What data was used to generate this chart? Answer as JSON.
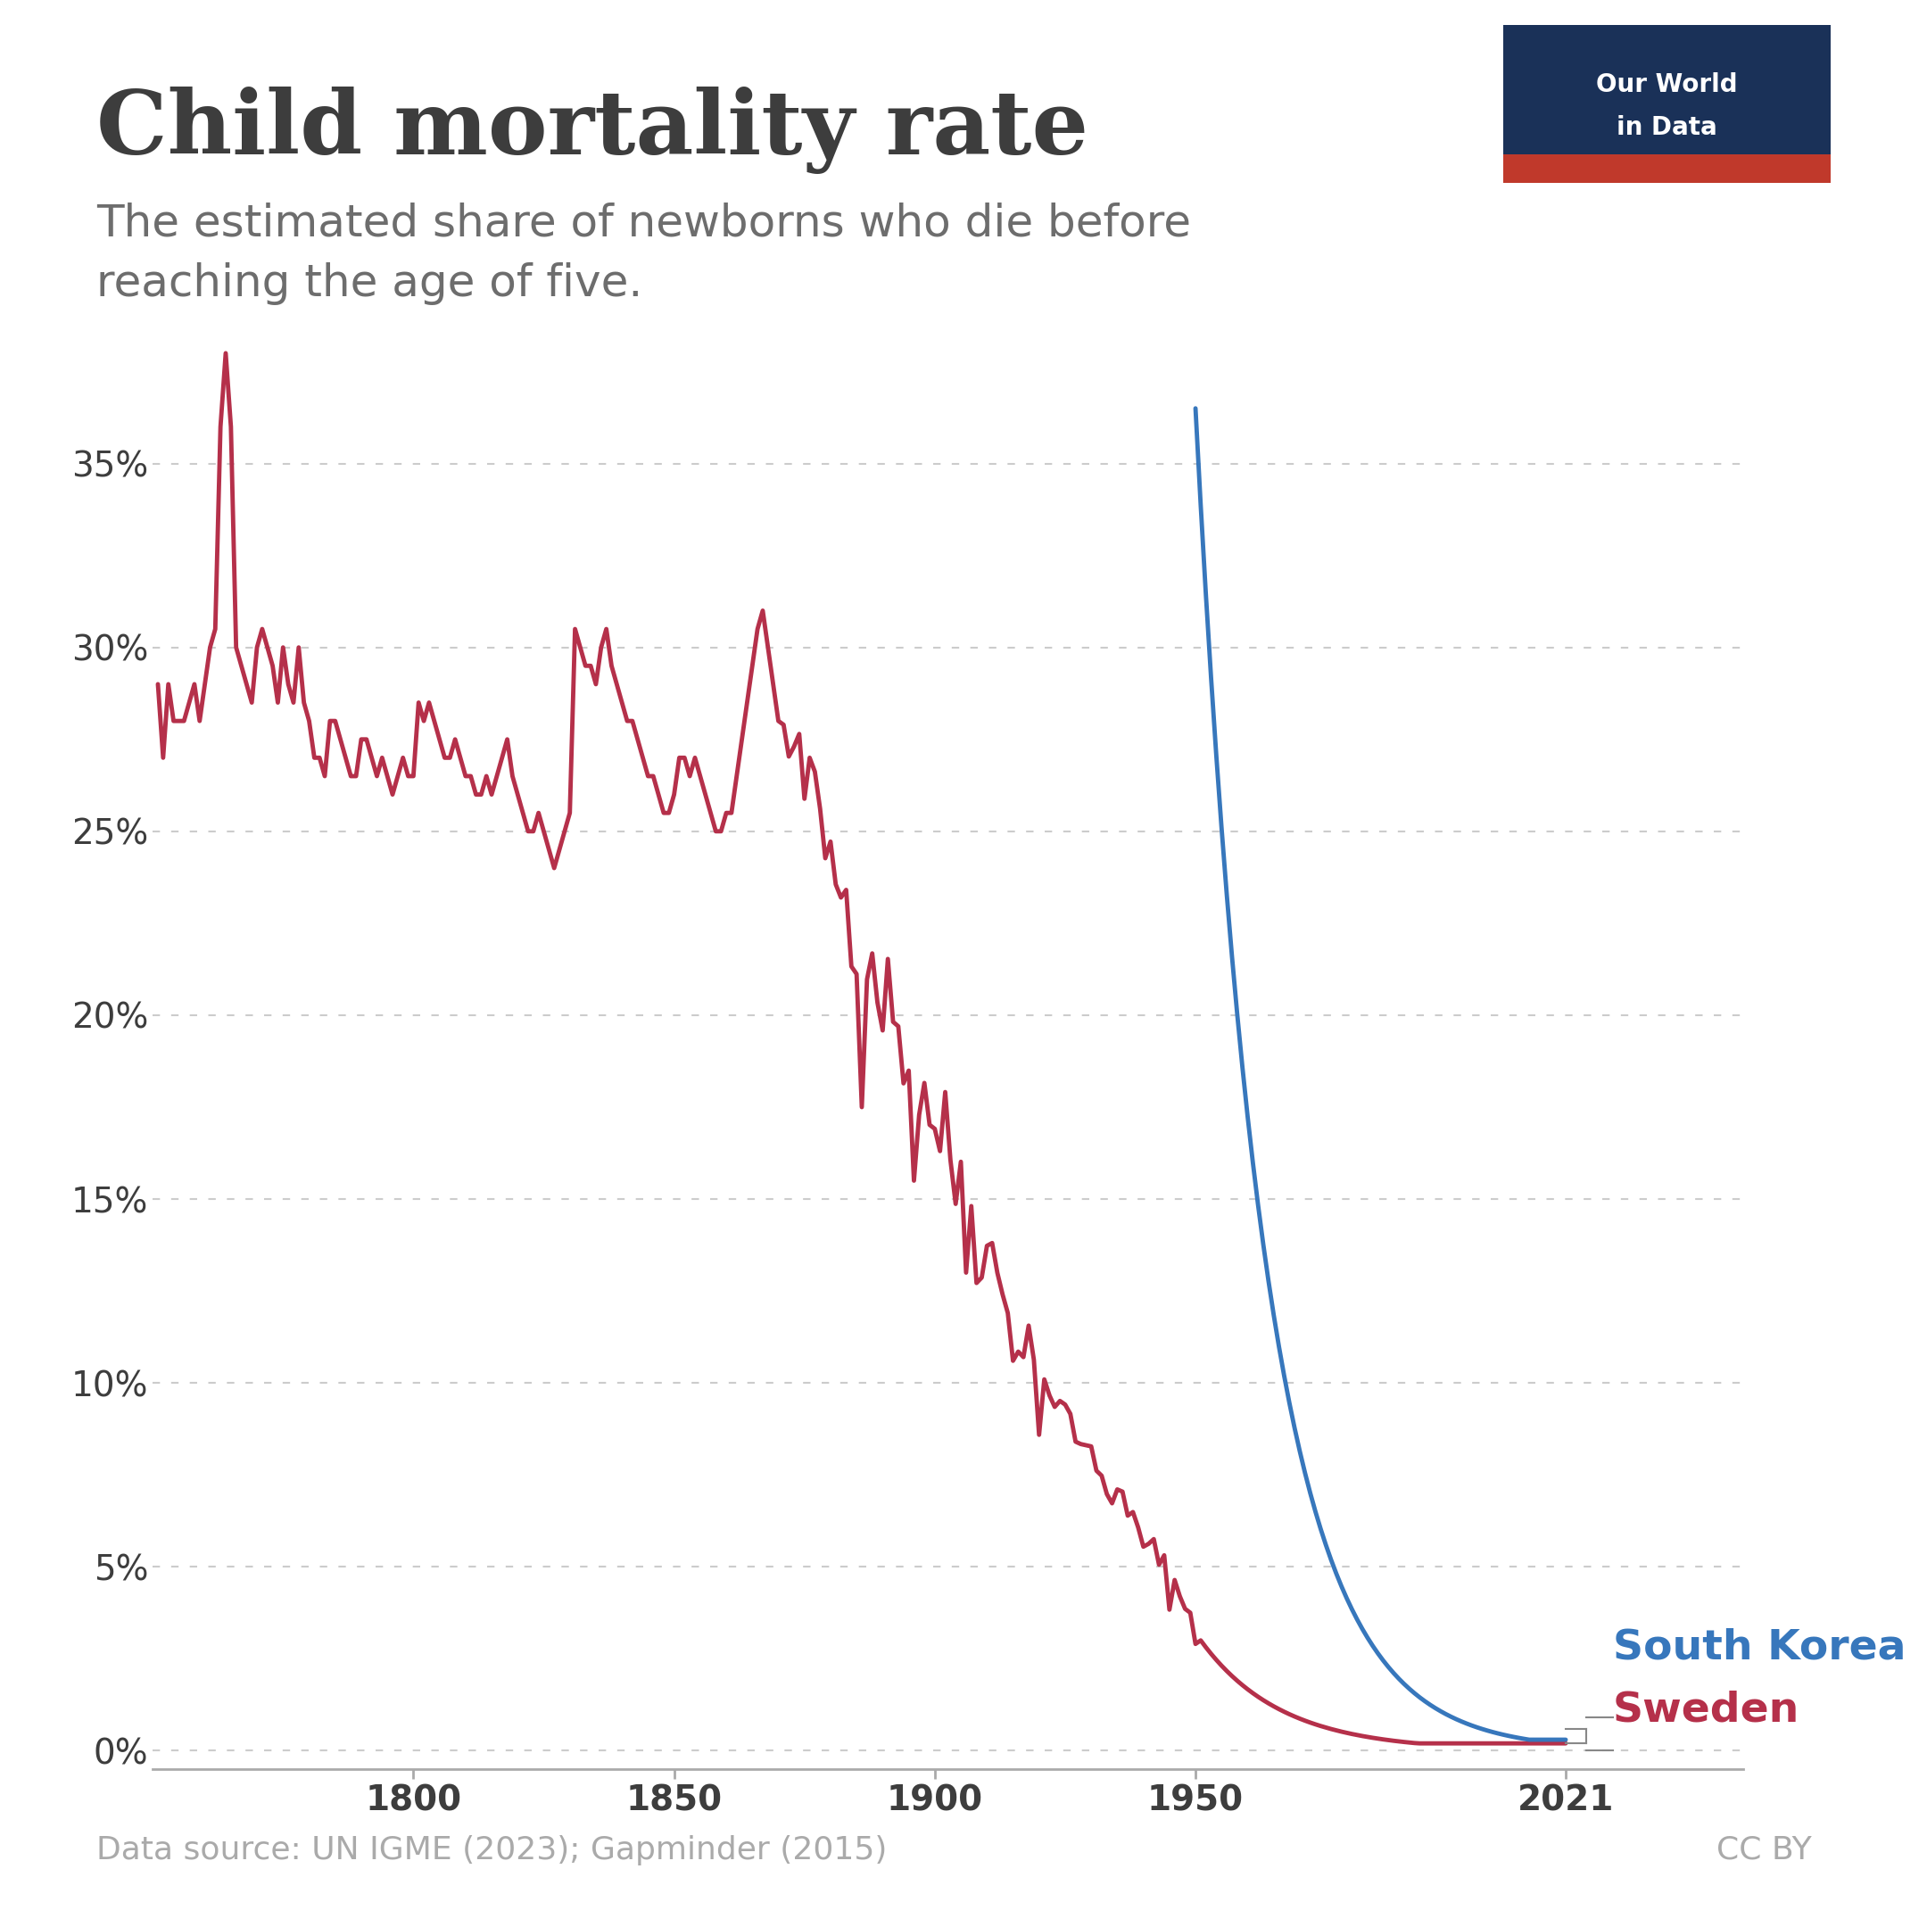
{
  "title": "Child mortality rate",
  "subtitle": "The estimated share of newborns who die before\nreaching the age of five.",
  "xlabel": "",
  "ylabel": "",
  "source_text": "Data source: UN IGME (2023); Gapminder (2015)",
  "ccby_text": "CC BY",
  "legend_labels": [
    "South Korea",
    "Sweden"
  ],
  "legend_colors": [
    "#3777bc",
    "#b5304a"
  ],
  "background_color": "#ffffff",
  "title_color": "#3d3d3d",
  "subtitle_color": "#6d6d6d",
  "grid_color": "#cccccc",
  "axis_color": "#aaaaaa",
  "owid_bg_color": "#1a3158",
  "owid_red_color": "#c0392b",
  "owid_text_color": "#ffffff",
  "xlim": [
    1750,
    2055
  ],
  "ylim": [
    -0.005,
    0.42
  ],
  "xticks": [
    1800,
    1850,
    1900,
    1950,
    2021
  ],
  "yticks": [
    0.0,
    0.05,
    0.1,
    0.15,
    0.2,
    0.25,
    0.3,
    0.35
  ],
  "ytick_labels": [
    "0%",
    "5%",
    "10%",
    "15%",
    "20%",
    "25%",
    "30%",
    "35%"
  ],
  "sweden_color": "#b5304a",
  "korea_color": "#3777bc",
  "line_width": 3.5
}
